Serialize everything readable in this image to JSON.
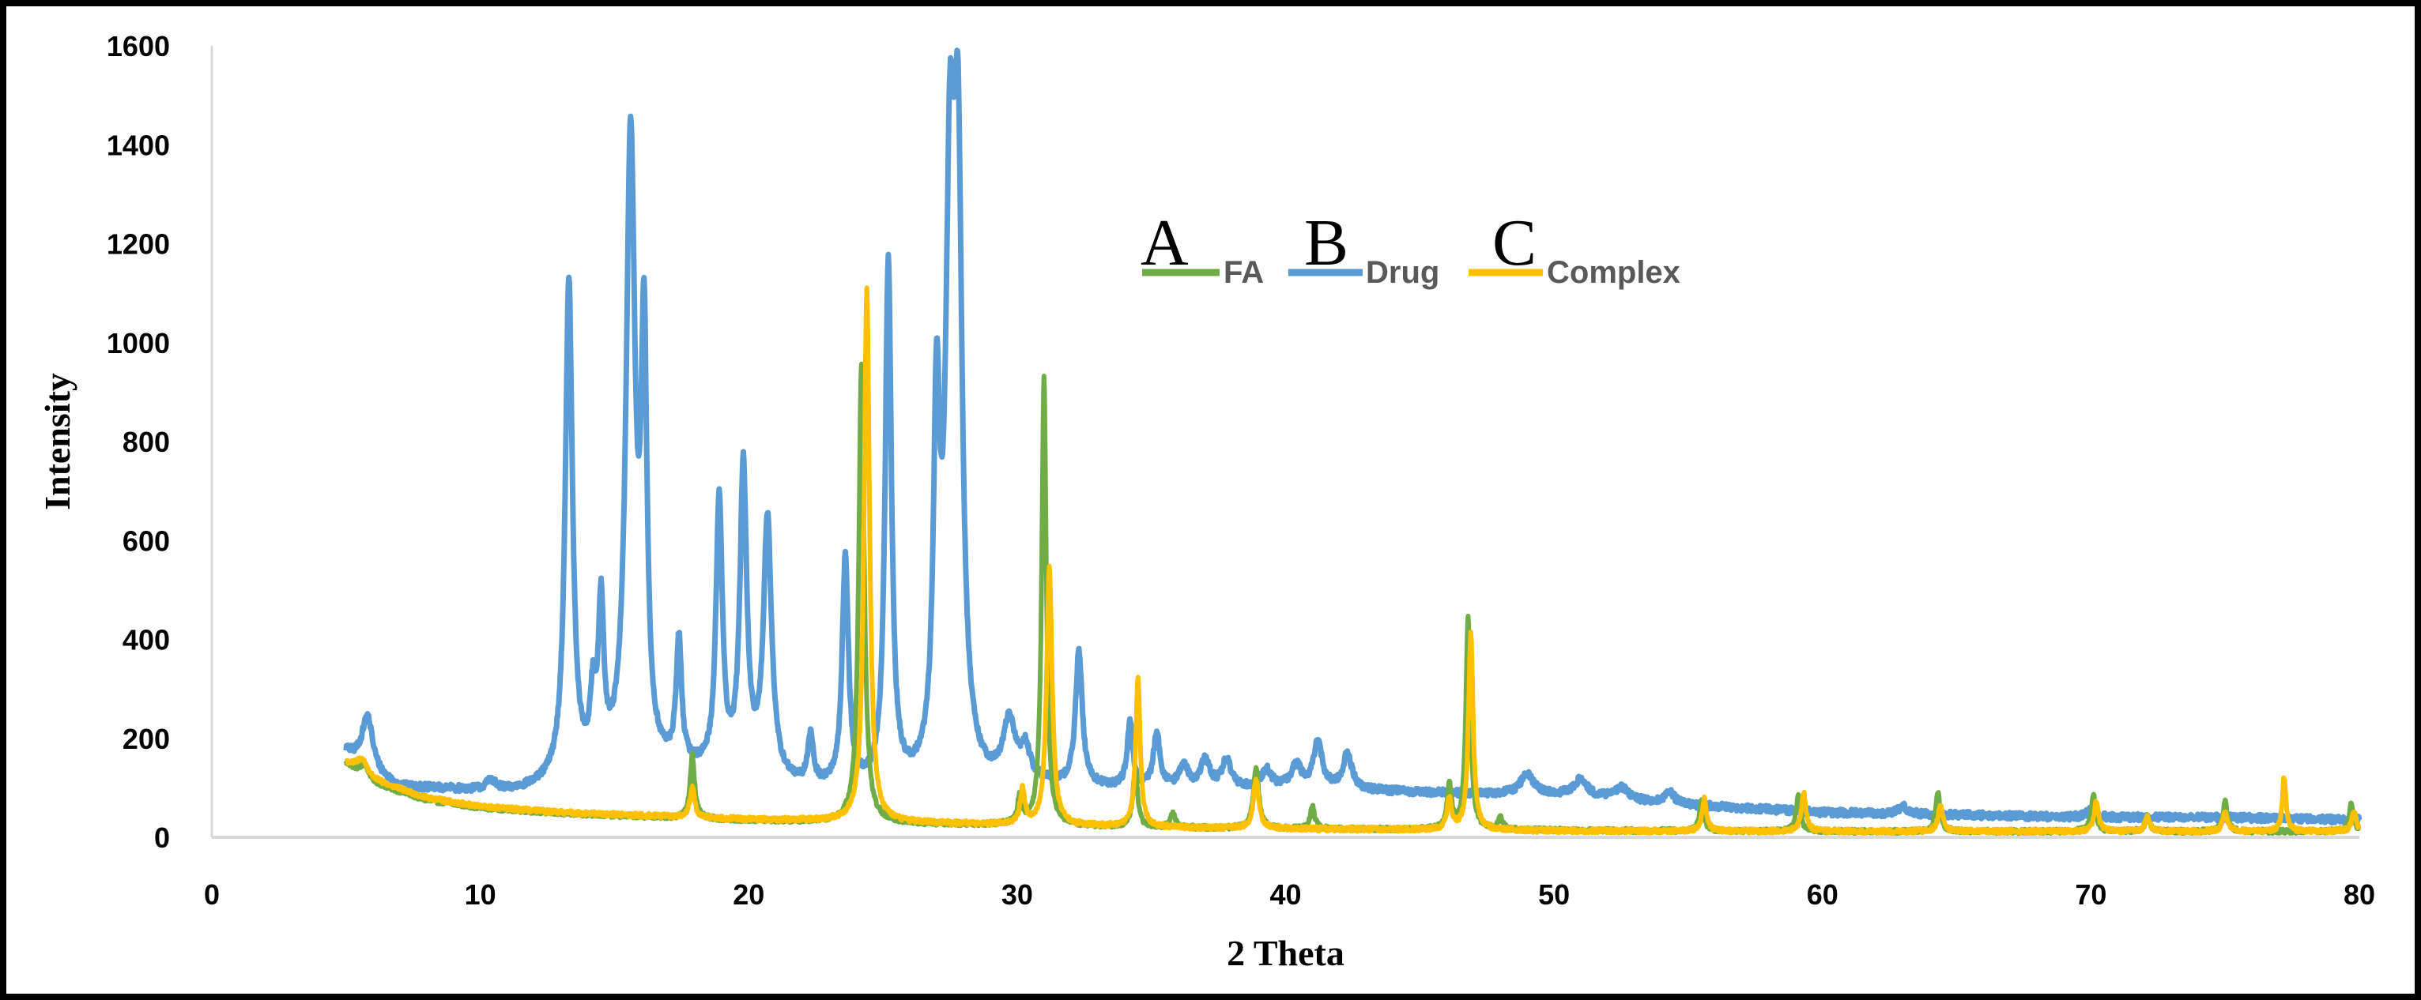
{
  "chart_data": {
    "type": "line",
    "title": "",
    "xlabel": "2 Theta",
    "ylabel": "Intensity",
    "xlim": [
      0,
      80
    ],
    "ylim": [
      0,
      1600
    ],
    "xticks": [
      "0",
      "10",
      "20",
      "30",
      "40",
      "50",
      "60",
      "70",
      "80"
    ],
    "yticks": [
      "0",
      "200",
      "400",
      "600",
      "800",
      "1000",
      "1200",
      "1400",
      "1600"
    ],
    "grid": false,
    "legend": {
      "placement": "top-center",
      "entries": [
        {
          "letter": "A",
          "name": "FA",
          "color": "#70ad47"
        },
        {
          "letter": "B",
          "name": "Drug",
          "color": "#5b9bd5"
        },
        {
          "letter": "C",
          "name": "Complex",
          "color": "#ffc000"
        }
      ]
    },
    "series": [
      {
        "name": "FA",
        "color": "#70ad47",
        "baseline": [
          [
            5,
            150
          ],
          [
            6,
            110
          ],
          [
            8,
            75
          ],
          [
            10,
            60
          ],
          [
            13,
            48
          ],
          [
            17,
            40
          ],
          [
            20,
            34
          ],
          [
            25,
            28
          ],
          [
            30,
            24
          ],
          [
            35,
            20
          ],
          [
            40,
            17
          ],
          [
            50,
            14
          ],
          [
            60,
            12
          ],
          [
            70,
            12
          ],
          [
            80,
            12
          ]
        ],
        "peaks": [
          [
            5.7,
            25,
            0.2
          ],
          [
            17.9,
            130,
            0.1
          ],
          [
            24.2,
            930,
            0.12
          ],
          [
            30.1,
            55,
            0.1
          ],
          [
            31.0,
            910,
            0.1
          ],
          [
            34.4,
            120,
            0.1
          ],
          [
            35.8,
            30,
            0.1
          ],
          [
            38.9,
            125,
            0.12
          ],
          [
            41.0,
            45,
            0.1
          ],
          [
            46.1,
            90,
            0.1
          ],
          [
            46.8,
            430,
            0.1
          ],
          [
            48.0,
            25,
            0.1
          ],
          [
            55.5,
            60,
            0.1
          ],
          [
            59.1,
            70,
            0.1
          ],
          [
            64.3,
            80,
            0.1
          ],
          [
            70.1,
            75,
            0.1
          ],
          [
            72.1,
            30,
            0.1
          ],
          [
            75.0,
            60,
            0.1
          ],
          [
            79.7,
            55,
            0.1
          ]
        ]
      },
      {
        "name": "Drug",
        "color": "#5b9bd5",
        "baseline": [
          [
            5,
            170
          ],
          [
            6,
            125
          ],
          [
            7,
            100
          ],
          [
            9,
            95
          ],
          [
            11,
            90
          ],
          [
            12,
            95
          ],
          [
            13,
            110
          ],
          [
            17,
            130
          ],
          [
            20,
            120
          ],
          [
            22,
            95
          ],
          [
            25,
            90
          ],
          [
            27,
            95
          ],
          [
            29,
            100
          ],
          [
            30,
            110
          ],
          [
            32,
            100
          ],
          [
            35,
            95
          ],
          [
            40,
            100
          ],
          [
            45,
            90
          ],
          [
            50,
            85
          ],
          [
            55,
            65
          ],
          [
            60,
            50
          ],
          [
            65,
            45
          ],
          [
            70,
            40
          ],
          [
            75,
            40
          ],
          [
            80,
            35
          ]
        ],
        "peaks": [
          [
            5.8,
            110,
            0.25
          ],
          [
            10.4,
            20,
            0.2
          ],
          [
            13.3,
            1000,
            0.16
          ],
          [
            14.2,
            130,
            0.12
          ],
          [
            14.5,
            320,
            0.12
          ],
          [
            15.6,
            1270,
            0.2
          ],
          [
            16.1,
            820,
            0.13
          ],
          [
            17.4,
            250,
            0.12
          ],
          [
            18.9,
            550,
            0.14
          ],
          [
            19.8,
            610,
            0.15
          ],
          [
            20.7,
            520,
            0.18
          ],
          [
            22.3,
            100,
            0.12
          ],
          [
            23.6,
            460,
            0.14
          ],
          [
            25.2,
            1060,
            0.14
          ],
          [
            27.0,
            700,
            0.14
          ],
          [
            27.5,
            1110,
            0.2
          ],
          [
            27.8,
            1100,
            0.18
          ],
          [
            29.7,
            115,
            0.25
          ],
          [
            30.3,
            60,
            0.2
          ],
          [
            32.3,
            270,
            0.15
          ],
          [
            34.2,
            130,
            0.12
          ],
          [
            35.2,
            110,
            0.15
          ],
          [
            36.2,
            45,
            0.2
          ],
          [
            37.0,
            55,
            0.2
          ],
          [
            37.8,
            55,
            0.2
          ],
          [
            39.3,
            35,
            0.2
          ],
          [
            40.4,
            45,
            0.2
          ],
          [
            41.2,
            90,
            0.2
          ],
          [
            42.3,
            70,
            0.2
          ],
          [
            49.0,
            40,
            0.3
          ],
          [
            51.0,
            35,
            0.3
          ],
          [
            52.5,
            25,
            0.3
          ],
          [
            54.3,
            25,
            0.2
          ],
          [
            63.0,
            15,
            0.2
          ],
          [
            70.0,
            15,
            0.2
          ]
        ]
      },
      {
        "name": "Complex",
        "color": "#ffc000",
        "baseline": [
          [
            5,
            150
          ],
          [
            6,
            115
          ],
          [
            8,
            80
          ],
          [
            10,
            62
          ],
          [
            13,
            50
          ],
          [
            17,
            42
          ],
          [
            20,
            36
          ],
          [
            25,
            30
          ],
          [
            30,
            25
          ],
          [
            35,
            20
          ],
          [
            40,
            17
          ],
          [
            50,
            13
          ],
          [
            60,
            12
          ],
          [
            70,
            12
          ],
          [
            80,
            12
          ]
        ],
        "peaks": [
          [
            5.6,
            30,
            0.25
          ],
          [
            17.9,
            60,
            0.1
          ],
          [
            24.4,
            1080,
            0.12
          ],
          [
            30.2,
            70,
            0.1
          ],
          [
            31.2,
            520,
            0.12
          ],
          [
            34.5,
            300,
            0.1
          ],
          [
            38.9,
            100,
            0.12
          ],
          [
            46.1,
            60,
            0.1
          ],
          [
            46.9,
            400,
            0.1
          ],
          [
            55.6,
            65,
            0.1
          ],
          [
            59.3,
            80,
            0.1
          ],
          [
            64.4,
            55,
            0.1
          ],
          [
            70.2,
            60,
            0.1
          ],
          [
            72.1,
            30,
            0.1
          ],
          [
            75.0,
            40,
            0.1
          ],
          [
            77.2,
            110,
            0.08
          ],
          [
            79.8,
            40,
            0.1
          ]
        ]
      }
    ]
  }
}
